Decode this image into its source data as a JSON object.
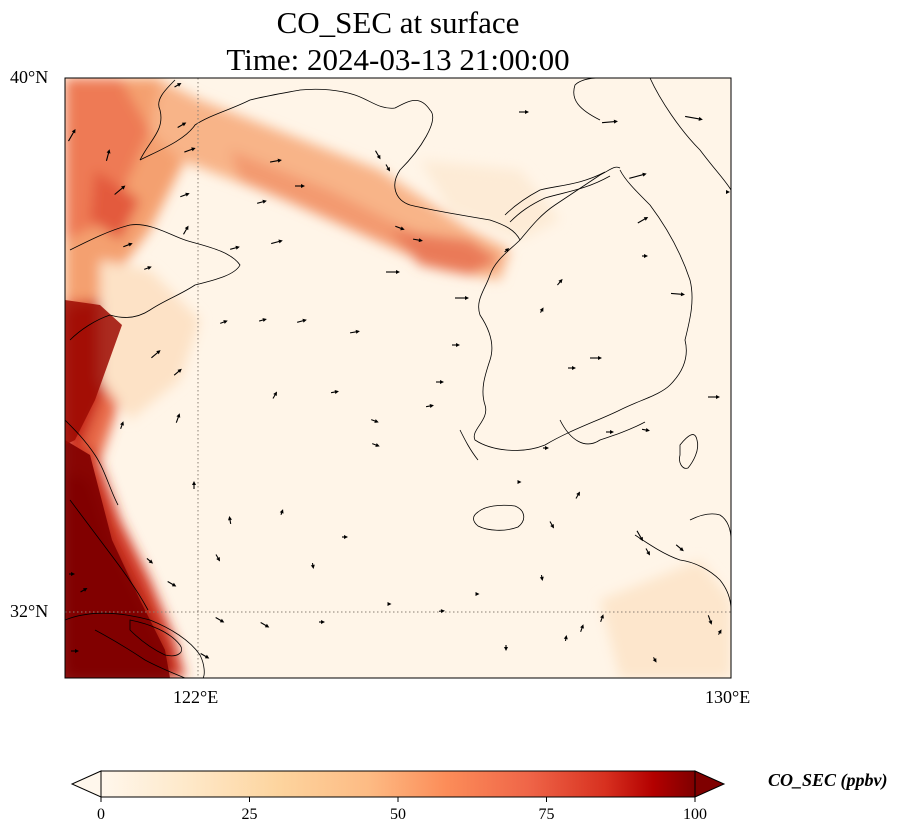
{
  "title": {
    "line1": "CO_SEC at surface",
    "line2": "Time: 2024-03-13 21:00:00"
  },
  "map": {
    "lat_range": [
      31,
      40
    ],
    "lon_range": [
      120,
      130
    ],
    "lat_labels": [
      "40°N",
      "32°N"
    ],
    "lon_labels": [
      "122°E",
      "130°E"
    ],
    "gridlines": "dotted",
    "gridline_color": "#8a7f75"
  },
  "colorbar": {
    "label": "CO_SEC (ppbv)",
    "ticks": [
      "0",
      "25",
      "50",
      "75",
      "100"
    ],
    "colormap": "OrRd",
    "range": [
      0,
      100
    ],
    "extend": "both"
  },
  "colors": {
    "low": "#fff7ec",
    "mid": "#fc8d59",
    "high": "#7f0000"
  }
}
